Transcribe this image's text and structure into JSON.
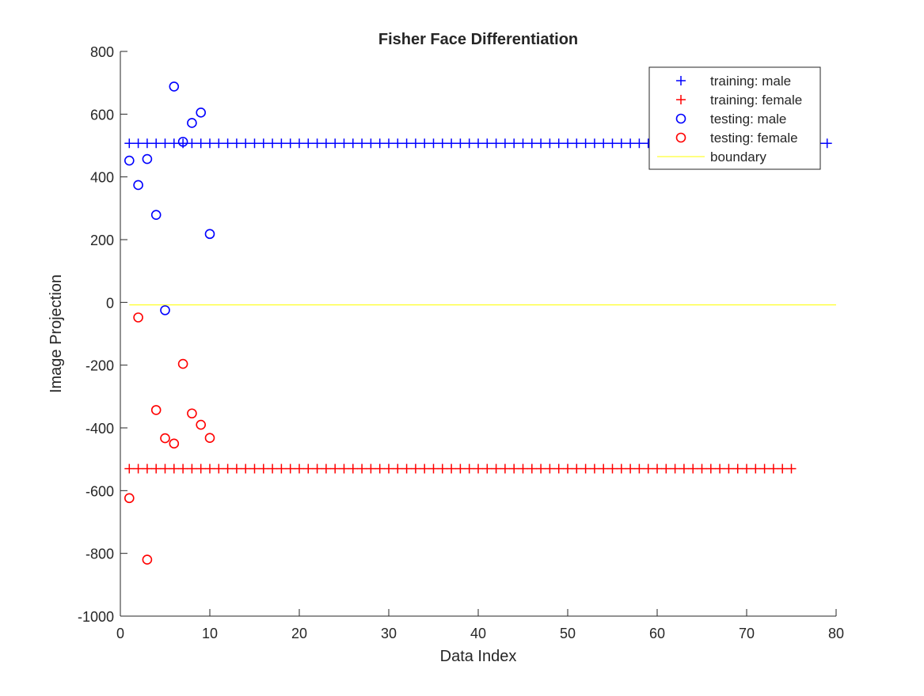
{
  "chart_data": {
    "type": "scatter",
    "title": "Fisher Face Differentiation",
    "xlabel": "Data Index",
    "ylabel": "Image Projection",
    "xlim": [
      0,
      80
    ],
    "ylim": [
      -1000,
      800
    ],
    "xticks": [
      0,
      10,
      20,
      30,
      40,
      50,
      60,
      70,
      80
    ],
    "yticks": [
      800,
      600,
      400,
      200,
      0,
      -200,
      -400,
      -600,
      -800,
      -1000
    ],
    "grid": false,
    "legend_position": "top-right",
    "series": [
      {
        "name": "training: male",
        "marker": "plus",
        "color": "#0000ff",
        "x": [
          1,
          2,
          3,
          4,
          5,
          6,
          7,
          8,
          9,
          10,
          11,
          12,
          13,
          14,
          15,
          16,
          17,
          18,
          19,
          20,
          21,
          22,
          23,
          24,
          25,
          26,
          27,
          28,
          29,
          30,
          31,
          32,
          33,
          34,
          35,
          36,
          37,
          38,
          39,
          40,
          41,
          42,
          43,
          44,
          45,
          46,
          47,
          48,
          49,
          50,
          51,
          52,
          53,
          54,
          55,
          56,
          57,
          58,
          59,
          60,
          61,
          62,
          63,
          64,
          65,
          66,
          67,
          68,
          69,
          70,
          71,
          72,
          73,
          74,
          75,
          76,
          77,
          78,
          79
        ],
        "y": [
          507,
          507,
          507,
          507,
          507,
          507,
          507,
          507,
          507,
          507,
          507,
          507,
          507,
          507,
          507,
          507,
          507,
          507,
          507,
          507,
          507,
          507,
          507,
          507,
          507,
          507,
          507,
          507,
          507,
          507,
          507,
          507,
          507,
          507,
          507,
          507,
          507,
          507,
          507,
          507,
          507,
          507,
          507,
          507,
          507,
          507,
          507,
          507,
          507,
          507,
          507,
          507,
          507,
          507,
          507,
          507,
          507,
          507,
          507,
          507,
          507,
          507,
          507,
          507,
          507,
          507,
          507,
          507,
          507,
          507,
          507,
          507,
          507,
          507,
          507,
          507,
          507,
          507,
          507
        ]
      },
      {
        "name": "training: female",
        "marker": "plus",
        "color": "#ff0000",
        "x": [
          1,
          2,
          3,
          4,
          5,
          6,
          7,
          8,
          9,
          10,
          11,
          12,
          13,
          14,
          15,
          16,
          17,
          18,
          19,
          20,
          21,
          22,
          23,
          24,
          25,
          26,
          27,
          28,
          29,
          30,
          31,
          32,
          33,
          34,
          35,
          36,
          37,
          38,
          39,
          40,
          41,
          42,
          43,
          44,
          45,
          46,
          47,
          48,
          49,
          50,
          51,
          52,
          53,
          54,
          55,
          56,
          57,
          58,
          59,
          60,
          61,
          62,
          63,
          64,
          65,
          66,
          67,
          68,
          69,
          70,
          71,
          72,
          73,
          74,
          75
        ],
        "y": [
          -530,
          -530,
          -530,
          -530,
          -530,
          -530,
          -530,
          -530,
          -530,
          -530,
          -530,
          -530,
          -530,
          -530,
          -530,
          -530,
          -530,
          -530,
          -530,
          -530,
          -530,
          -530,
          -530,
          -530,
          -530,
          -530,
          -530,
          -530,
          -530,
          -530,
          -530,
          -530,
          -530,
          -530,
          -530,
          -530,
          -530,
          -530,
          -530,
          -530,
          -530,
          -530,
          -530,
          -530,
          -530,
          -530,
          -530,
          -530,
          -530,
          -530,
          -530,
          -530,
          -530,
          -530,
          -530,
          -530,
          -530,
          -530,
          -530,
          -530,
          -530,
          -530,
          -530,
          -530,
          -530,
          -530,
          -530,
          -530,
          -530,
          -530,
          -530,
          -530,
          -530,
          -530,
          -530
        ]
      },
      {
        "name": "testing: male",
        "marker": "circle",
        "color": "#0000ff",
        "x": [
          1,
          2,
          3,
          4,
          5,
          6,
          7,
          8,
          9,
          10
        ],
        "y": [
          452,
          374,
          457,
          279,
          -25,
          688,
          512,
          572,
          605,
          218
        ]
      },
      {
        "name": "testing: female",
        "marker": "circle",
        "color": "#ff0000",
        "x": [
          1,
          2,
          3,
          4,
          5,
          6,
          7,
          8,
          9,
          10
        ],
        "y": [
          -624,
          -48,
          -820,
          -343,
          -433,
          -450,
          -196,
          -354,
          -390,
          -432
        ]
      },
      {
        "name": "boundary",
        "marker": "line",
        "color": "#ffff00",
        "x": [
          1,
          80
        ],
        "y": [
          -8,
          -8
        ]
      }
    ]
  }
}
